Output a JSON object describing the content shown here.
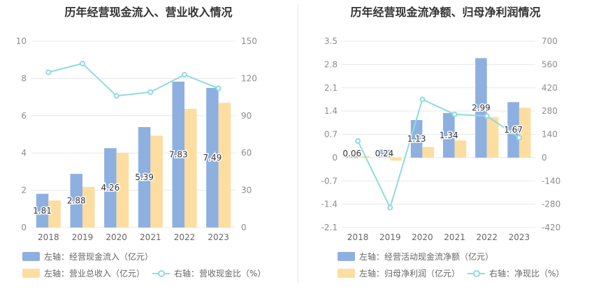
{
  "colors": {
    "bar_main": "#8eb0e0",
    "bar_secondary": "#fddda0",
    "line": "#8fdbe0",
    "grid": "#e8e8e8"
  },
  "chart_data": [
    {
      "type": "bar",
      "title": "历年经营现金流入、营业收入情况",
      "categories": [
        "2018",
        "2019",
        "2020",
        "2021",
        "2022",
        "2023"
      ],
      "series": [
        {
          "name": "左轴：经营现金流入（亿元）",
          "axis": "left",
          "values": [
            1.81,
            2.88,
            4.26,
            5.39,
            7.83,
            7.49
          ],
          "data_labels": [
            "1.81",
            "2.88",
            "4.26",
            "5.39",
            "7.83",
            "7.49"
          ]
        },
        {
          "name": "左轴：营业总收入（亿元）",
          "axis": "left",
          "values": [
            1.45,
            2.18,
            4.0,
            4.93,
            6.37,
            6.69
          ]
        },
        {
          "name": "右轴：营收现金比（%）",
          "axis": "right",
          "type": "line",
          "values": [
            125,
            132,
            106,
            109,
            123,
            112
          ]
        }
      ],
      "left_axis": {
        "ylim": [
          0,
          10
        ],
        "ticks": [
          "0",
          "2",
          "4",
          "6",
          "8",
          "10"
        ]
      },
      "right_axis": {
        "ylim": [
          0,
          150
        ],
        "ticks": [
          "0",
          "30",
          "60",
          "90",
          "120",
          "150"
        ]
      },
      "grid": true,
      "legend_position": "bottom"
    },
    {
      "type": "bar",
      "title": "历年经营现金流净额、归母净利润情况",
      "categories": [
        "2018",
        "2019",
        "2020",
        "2021",
        "2022",
        "2023"
      ],
      "series": [
        {
          "name": "左轴：经营活动现金流净额（亿元）",
          "axis": "left",
          "values": [
            0.06,
            0.24,
            1.13,
            1.34,
            2.99,
            1.67
          ],
          "data_labels": [
            "0.06",
            "0.24",
            "1.13",
            "1.34",
            "2.99",
            "1.67"
          ]
        },
        {
          "name": "左轴：归母净利润（亿元）",
          "axis": "left",
          "values": [
            0.05,
            -0.09,
            0.32,
            0.52,
            1.22,
            1.5
          ]
        },
        {
          "name": "右轴：净现比（%）",
          "axis": "right",
          "type": "line",
          "values": [
            100,
            -300,
            350,
            260,
            250,
            120
          ]
        }
      ],
      "left_axis": {
        "ylim": [
          -2.1,
          3.5
        ],
        "ticks": [
          "-2.1",
          "-1.4",
          "-0.7",
          "0",
          "0.7",
          "1.4",
          "2.1",
          "2.8",
          "3.5"
        ]
      },
      "right_axis": {
        "ylim": [
          -420,
          700
        ],
        "ticks": [
          "-420",
          "-280",
          "-140",
          "0",
          "140",
          "280",
          "420",
          "560",
          "700"
        ]
      },
      "grid": true,
      "legend_position": "bottom"
    }
  ]
}
